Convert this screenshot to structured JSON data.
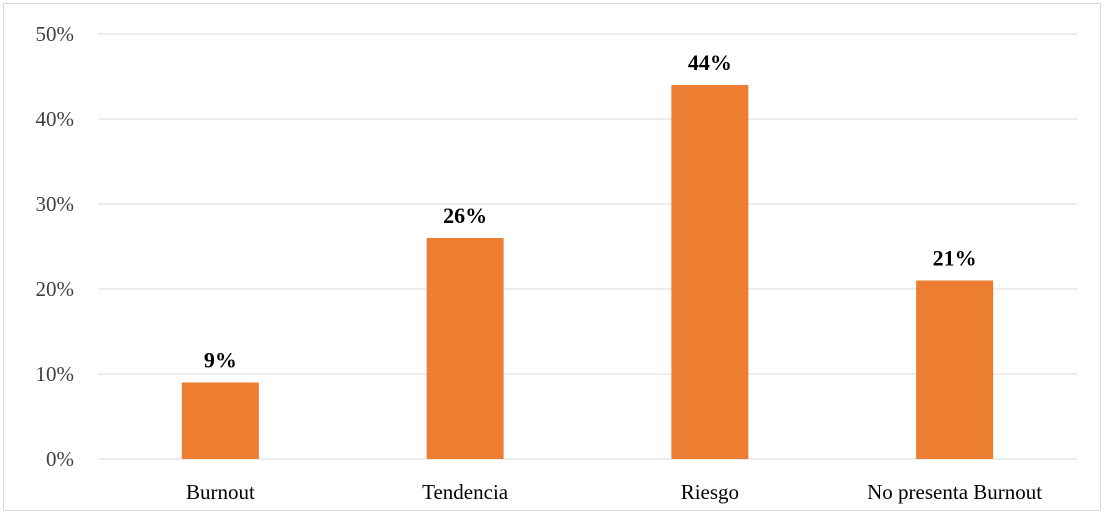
{
  "chart_data": {
    "type": "bar",
    "categories": [
      "Burnout",
      "Tendencia",
      "Riesgo",
      "No presenta Burnout"
    ],
    "values": [
      9,
      26,
      44,
      21
    ],
    "data_labels": [
      "9%",
      "26%",
      "44%",
      "21%"
    ],
    "title": "",
    "xlabel": "",
    "ylabel": "",
    "ylim": [
      0,
      50
    ],
    "y_ticks": [
      0,
      10,
      20,
      30,
      40,
      50
    ],
    "y_tick_labels": [
      "0%",
      "10%",
      "20%",
      "30%",
      "40%",
      "50%"
    ],
    "grid": true,
    "legend": "none",
    "bar_color": "#ED7D31",
    "gridline_color": "#D9D9D9"
  }
}
